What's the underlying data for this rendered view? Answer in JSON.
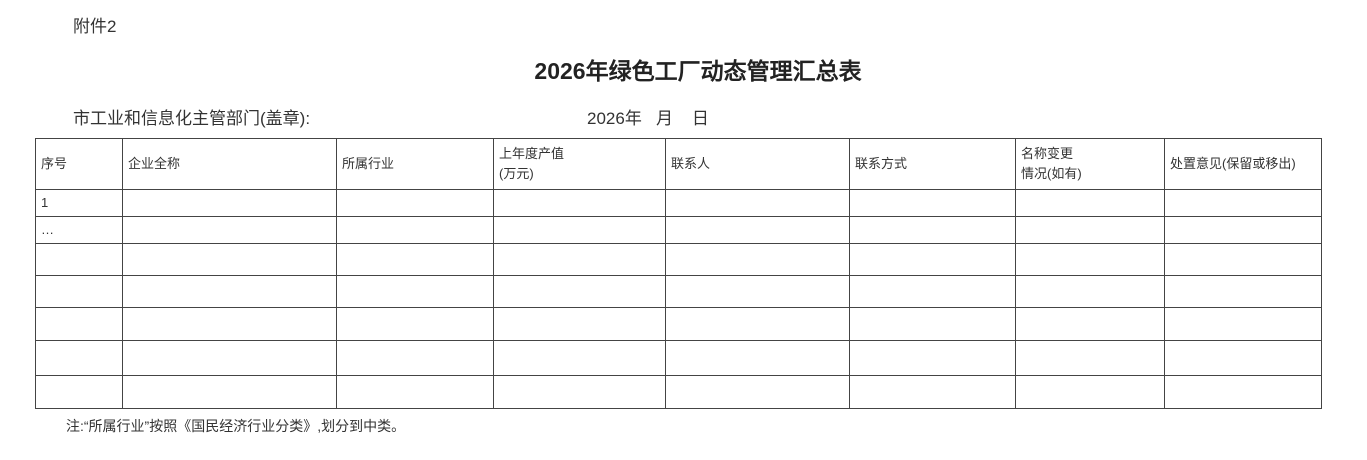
{
  "attachment": "附件2",
  "title": "2026年绿色工厂动态管理汇总表",
  "department_label": "市工业和信息化主管部门(盖章):",
  "date_line": "2026年   月    日",
  "table": {
    "headers": [
      [
        "序号"
      ],
      [
        "企业全称"
      ],
      [
        "所属行业"
      ],
      [
        "上年度产值",
        "(万元)"
      ],
      [
        "联系人"
      ],
      [
        "联系方式"
      ],
      [
        "名称变更",
        "情况(如有)"
      ],
      [
        "处置意见(保留或移出)"
      ]
    ],
    "rows": [
      [
        "1",
        "",
        "",
        "",
        "",
        "",
        "",
        ""
      ],
      [
        "…",
        "",
        "",
        "",
        "",
        "",
        "",
        ""
      ],
      [
        "",
        "",
        "",
        "",
        "",
        "",
        "",
        ""
      ],
      [
        "",
        "",
        "",
        "",
        "",
        "",
        "",
        ""
      ],
      [
        "",
        "",
        "",
        "",
        "",
        "",
        "",
        ""
      ],
      [
        "",
        "",
        "",
        "",
        "",
        "",
        "",
        ""
      ],
      [
        "",
        "",
        "",
        "",
        "",
        "",
        "",
        ""
      ]
    ]
  },
  "note": "注:“所属行业”按照《国民经济行业分类》,划分到中类。"
}
